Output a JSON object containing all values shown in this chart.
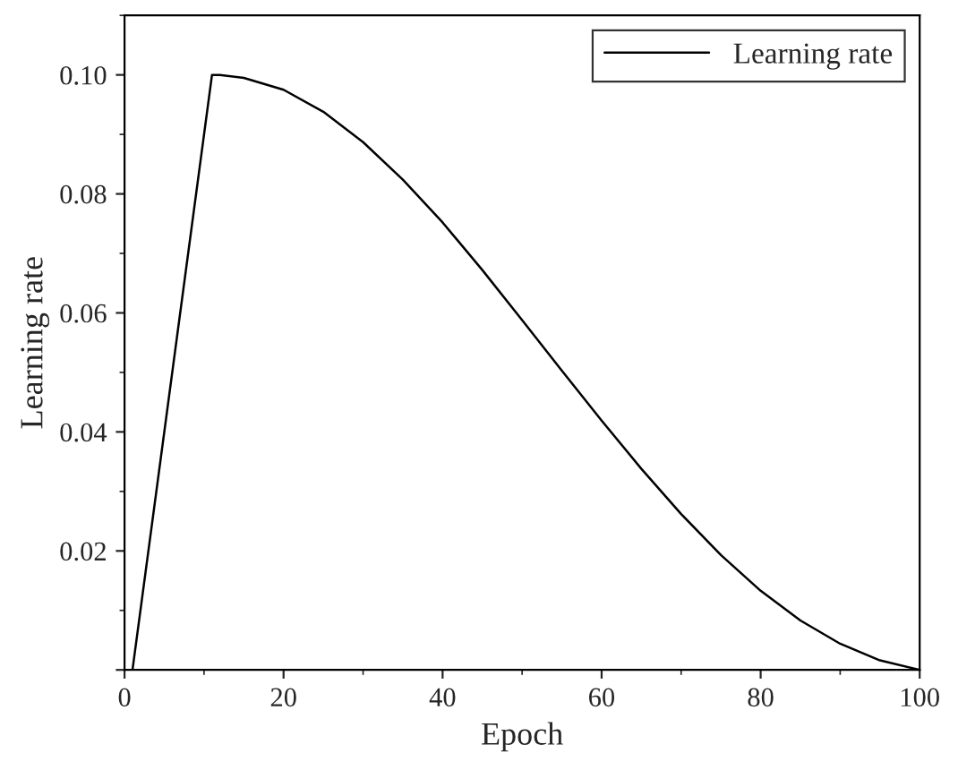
{
  "chart_data": {
    "type": "line",
    "xlabel": "Epoch",
    "ylabel": "Learning rate",
    "x": [
      1,
      11,
      12,
      15,
      20,
      25,
      30,
      35,
      40,
      45,
      50,
      55,
      60,
      65,
      70,
      75,
      80,
      85,
      90,
      95,
      100
    ],
    "series": [
      {
        "name": "Learning rate",
        "color": "#000000",
        "values": [
          0,
          0.1,
          0.1,
          0.0995,
          0.0975,
          0.0938,
          0.0887,
          0.0824,
          0.0752,
          0.0672,
          0.0588,
          0.0503,
          0.0419,
          0.0338,
          0.0262,
          0.0193,
          0.0133,
          0.0083,
          0.0044,
          0.0016,
          0
        ]
      }
    ],
    "xlim": [
      0,
      100
    ],
    "xticks": [
      0,
      20,
      40,
      60,
      80,
      100
    ],
    "ylim": [
      0,
      0.11
    ],
    "yticks": [
      {
        "value": 0,
        "label": null
      },
      0.02,
      0.04,
      0.06,
      0.08,
      {
        "value": 0.1,
        "label": "0.10"
      }
    ],
    "grid": false,
    "legend": "top right",
    "marker": "none",
    "line_style": "solid"
  }
}
